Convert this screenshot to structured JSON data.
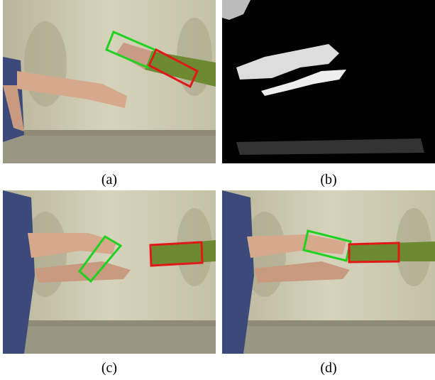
{
  "panels": [
    {
      "caption": "(a)"
    },
    {
      "caption": "(b)"
    },
    {
      "caption": "(c)"
    },
    {
      "caption": "(d)"
    }
  ]
}
